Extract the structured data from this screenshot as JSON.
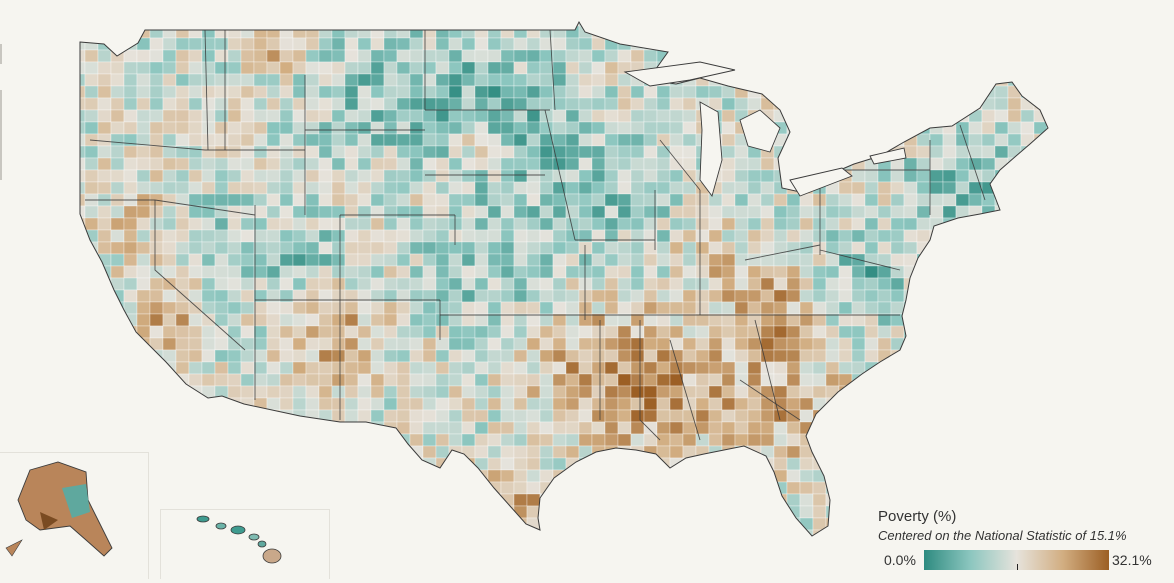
{
  "legend": {
    "title": "Poverty (%)",
    "subtitle": "Centered on the National Statistic of 15.1%",
    "min_label": "0.0%",
    "max_label": "32.1%",
    "min_value": 0.0,
    "center_value": 15.1,
    "max_value": 32.1
  },
  "colors": {
    "background": "#f6f5f0",
    "low": "#2e8b80",
    "low_mid": "#8cc6bf",
    "center": "#e6e3dc",
    "high_mid": "#d2ae82",
    "high": "#9c5f24",
    "border_state": "#3b3b3b",
    "border_county": "#ffffff"
  }
}
